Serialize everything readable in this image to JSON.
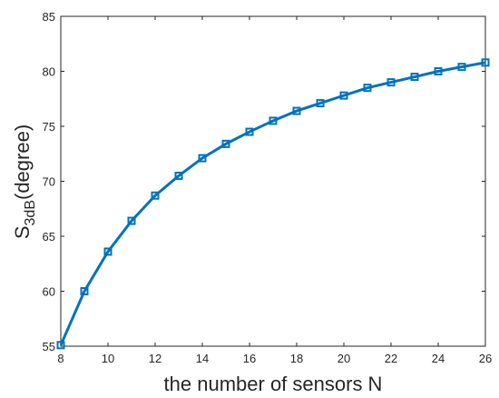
{
  "chart_data": {
    "type": "line",
    "title": "",
    "xlabel": "the number of sensors N",
    "ylabel": {
      "main": "S",
      "subscript": "3dB",
      "suffix": "(degree)"
    },
    "xlim": [
      8,
      26
    ],
    "ylim": [
      55,
      85
    ],
    "xticks": [
      "8",
      "10",
      "12",
      "14",
      "16",
      "18",
      "20",
      "22",
      "24",
      "26"
    ],
    "yticks": [
      "55",
      "60",
      "65",
      "70",
      "75",
      "80",
      "85"
    ],
    "grid": false,
    "marker": "square",
    "line_color": "#0072BD",
    "series": [
      {
        "x": [
          8,
          9,
          10,
          11,
          12,
          13,
          14,
          15,
          16,
          17,
          18,
          19,
          20,
          21,
          22,
          23,
          24,
          25,
          26
        ],
        "values": [
          55.1,
          60.0,
          63.6,
          66.4,
          68.7,
          70.5,
          72.1,
          73.4,
          74.5,
          75.5,
          76.4,
          77.1,
          77.8,
          78.5,
          79.0,
          79.5,
          80.0,
          80.4,
          80.8
        ]
      }
    ]
  }
}
